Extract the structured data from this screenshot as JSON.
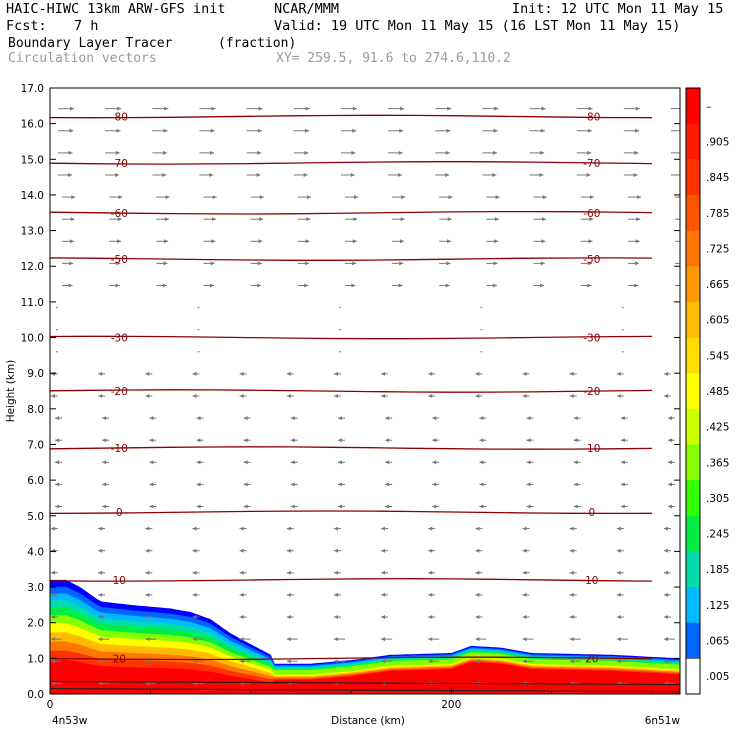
{
  "header": {
    "model": "HAIC-HIWC 13km ARW-GFS init",
    "org": "NCAR/MMM",
    "init": "Init: 12 UTC Mon 11 May 15",
    "fcst_label": "Fcst:",
    "fcst_value": "7 h",
    "valid": "Valid: 19 UTC Mon 11 May 15 (16 LST Mon 11 May 15)",
    "field1": "Boundary Layer Tracer",
    "field1_units": "(fraction)",
    "field2": "Circulation vectors",
    "xy": "XY= 259.5, 91.6 to 274.6,110.2"
  },
  "chart_data": {
    "type": "heatmap",
    "title": "Boundary Layer Tracer (fraction)",
    "xlabel": "Distance (km)",
    "ylabel": "Height (km)",
    "xlim": [
      0,
      314
    ],
    "ylim": [
      0,
      17
    ],
    "x_tick_labels": [
      "0",
      "200"
    ],
    "x_ticks": [
      0,
      200
    ],
    "x_end_labels": [
      "4n53w",
      "6n51w"
    ],
    "y_ticks": [
      "0.0",
      "1.0",
      "2.0",
      "3.0",
      "4.0",
      "5.0",
      "6.0",
      "7.0",
      "8.0",
      "9.0",
      "10.0",
      "11.0",
      "12.0",
      "13.0",
      "14.0",
      "15.0",
      "16.0",
      "17.0"
    ],
    "colorbar": {
      "labels": [
        "–",
        ".905",
        ".845",
        ".785",
        ".725",
        ".665",
        ".605",
        ".545",
        ".485",
        ".425",
        ".365",
        ".305",
        ".245",
        ".185",
        ".125",
        ".065",
        ".005"
      ],
      "colors": [
        "#ff0000",
        "#ff1a00",
        "#ff3300",
        "#ff5500",
        "#ff7700",
        "#ff9900",
        "#ffbb00",
        "#ffdd00",
        "#ffff00",
        "#ccff00",
        "#88ff00",
        "#33ff00",
        "#00ee44",
        "#00ddaa",
        "#00bbff",
        "#0066ff",
        "#0000ff"
      ]
    },
    "tracer_top_km": [
      [
        0,
        3.2
      ],
      [
        8,
        3.2
      ],
      [
        15,
        3.0
      ],
      [
        25,
        2.6
      ],
      [
        40,
        2.5
      ],
      [
        60,
        2.4
      ],
      [
        70,
        2.3
      ],
      [
        80,
        2.1
      ],
      [
        90,
        1.7
      ],
      [
        100,
        1.4
      ],
      [
        110,
        1.1
      ],
      [
        130,
        1.1
      ],
      [
        150,
        1.2
      ],
      [
        170,
        1.35
      ],
      [
        200,
        1.4
      ],
      [
        210,
        1.6
      ],
      [
        225,
        1.55
      ],
      [
        240,
        1.4
      ],
      [
        280,
        1.35
      ],
      [
        314,
        1.25
      ]
    ],
    "contours_celsius": [
      {
        "label": "20",
        "height_km": 1.0
      },
      {
        "label": "10",
        "height_km": 3.2
      },
      {
        "label": "0",
        "height_km": 5.1
      },
      {
        "label": "-10",
        "height_km": 6.9
      },
      {
        "label": "-20",
        "height_km": 8.5
      },
      {
        "label": "-30",
        "height_km": 10.0
      },
      {
        "label": "-50",
        "height_km": 12.2
      },
      {
        "label": "-60",
        "height_km": 13.5
      },
      {
        "label": "-70",
        "height_km": 14.9
      },
      {
        "label": "-80",
        "height_km": 16.2
      }
    ],
    "wind_vectors": "circulation vectors (westerly aloft, easterly below ~11 km)"
  },
  "colors": {
    "contour": "#8b0000",
    "vector": "#777777",
    "axis": "#000000"
  }
}
